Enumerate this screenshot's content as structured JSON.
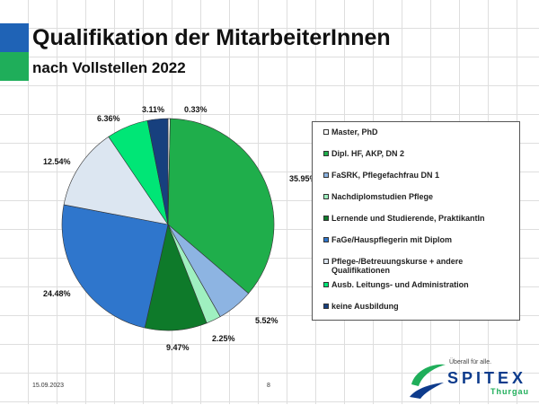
{
  "slide": {
    "title": "Qualifikation der MitarbeiterInnen",
    "subtitle": "nach Vollstellen 2022",
    "date": "15.09.2023",
    "page": "8"
  },
  "logo": {
    "tagline": "Überall für alle.",
    "brand": "SPITEX",
    "region": "Thurgau"
  },
  "colors": {
    "band_blue": "#1f63b6",
    "band_green": "#1fae5a"
  },
  "chart_data": {
    "type": "pie",
    "title": "",
    "legend_position": "right",
    "slices": [
      {
        "name": "Master, PhD",
        "value": 0.33,
        "label": "0.33%",
        "color": "#ffffff"
      },
      {
        "name": "Dipl. HF, AKP, DN 2",
        "value": 35.95,
        "label": "35.95%",
        "color": "#1fae4b"
      },
      {
        "name": "FaSRK, Pflegefachfrau DN 1",
        "value": 5.52,
        "label": "5.52%",
        "color": "#8db4e2"
      },
      {
        "name": "Nachdiplomstudien Pflege",
        "value": 2.25,
        "label": "2.25%",
        "color": "#9ff0c0"
      },
      {
        "name": "Lernende und Studierende, PraktikantIn",
        "value": 9.47,
        "label": "9.47%",
        "color": "#0e7a2a"
      },
      {
        "name": "FaGe/Hauspflegerin mit Diplom",
        "value": 24.48,
        "label": "24.48%",
        "color": "#2f76cc"
      },
      {
        "name": "Pflege-/Betreuungskurse + andere Qualifikationen",
        "value": 12.54,
        "label": "12.54%",
        "color": "#dce6f1"
      },
      {
        "name": "Ausb. Leitungs- und Administration",
        "value": 6.36,
        "label": "6.36%",
        "color": "#00e676"
      },
      {
        "name": "keine Ausbildung",
        "value": 3.11,
        "label": "3.11%",
        "color": "#17407e"
      }
    ]
  }
}
